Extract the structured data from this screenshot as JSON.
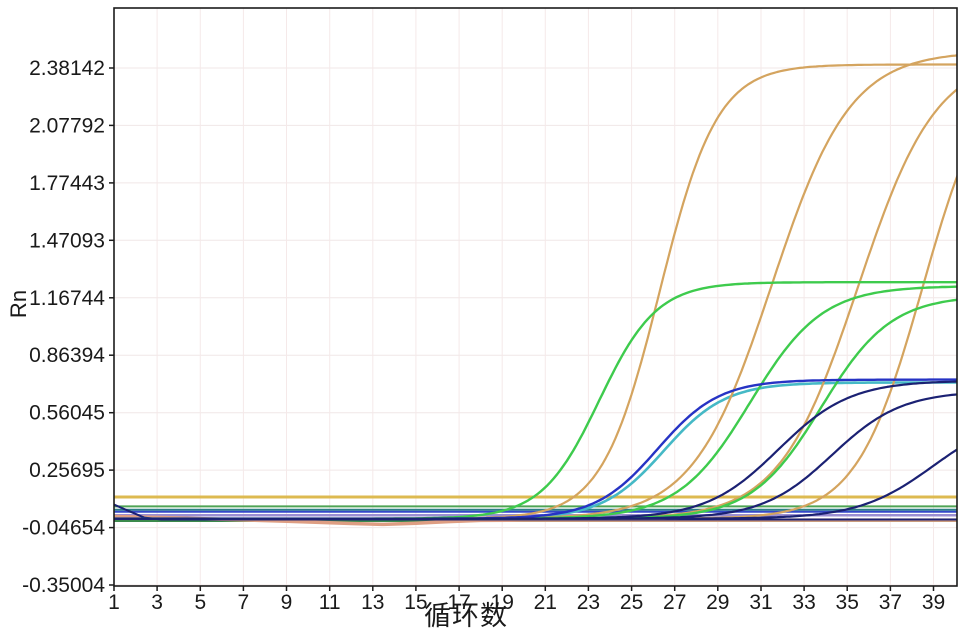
{
  "chart_data": {
    "type": "line",
    "title": "",
    "xlabel": "循环数",
    "ylabel": "Rn",
    "x_ticks": [
      "1",
      "3",
      "5",
      "7",
      "9",
      "11",
      "13",
      "15",
      "17",
      "19",
      "21",
      "23",
      "25",
      "27",
      "29",
      "31",
      "33",
      "35",
      "37",
      "39"
    ],
    "y_ticks": [
      "2.38142",
      "2.07792",
      "1.77443",
      "1.47093",
      "1.16744",
      "0.86394",
      "0.56045",
      "0.25695",
      "-0.04654",
      "-0.35004"
    ],
    "x_range": [
      1,
      40.1
    ],
    "y_range": [
      -0.35004,
      2.69842
    ],
    "grid": true,
    "legend": false,
    "background": "#ffffff",
    "frame_color": "#1b1b1b",
    "gridline_color_h": "#f0e7e7",
    "gridline_color_v": "#f5e9e9",
    "threshold_line": {
      "name": "threshold",
      "value": 0.115,
      "color": "#ddba50"
    },
    "series": [
      {
        "name": "flat-line-green",
        "color": "#4fa455",
        "kind": "line",
        "width": 2,
        "points": [
          [
            1,
            0.065
          ],
          [
            40.2,
            0.065
          ]
        ]
      },
      {
        "name": "flat-line-teal",
        "color": "#2c7f86",
        "kind": "line",
        "width": 2,
        "points": [
          [
            1,
            0.048
          ],
          [
            40.2,
            0.048
          ]
        ]
      },
      {
        "name": "flat-line-blue",
        "color": "#3448c8",
        "kind": "line",
        "width": 2,
        "points": [
          [
            1,
            0.037
          ],
          [
            40.2,
            0.037
          ]
        ]
      },
      {
        "name": "flat-line-purple",
        "color": "#9b8ed2",
        "kind": "line",
        "width": 2.5,
        "points": [
          [
            1,
            0.018
          ],
          [
            40.2,
            0.018
          ]
        ]
      },
      {
        "name": "flat-line-dark-green",
        "color": "#3c8a4c",
        "kind": "line",
        "width": 2,
        "points": [
          [
            1,
            -0.012
          ],
          [
            40.2,
            -0.012
          ]
        ]
      },
      {
        "name": "baseline-drift-salmon",
        "color": "#de9e83",
        "kind": "line",
        "width": 3.5,
        "points": [
          [
            1,
            0.012
          ],
          [
            3,
            0.007
          ],
          [
            6,
            -0.003
          ],
          [
            9,
            -0.013
          ],
          [
            12,
            -0.025
          ],
          [
            13.5,
            -0.03
          ],
          [
            15,
            -0.024
          ],
          [
            16.5,
            -0.015
          ],
          [
            18,
            -0.009
          ],
          [
            20,
            -0.007
          ],
          [
            40.2,
            -0.007
          ]
        ]
      },
      {
        "name": "navy-initial-dip",
        "color": "#1b2173",
        "kind": "line",
        "width": 2,
        "points": [
          [
            1,
            0.075
          ],
          [
            1.6,
            0.045
          ],
          [
            2.4,
            0.006
          ],
          [
            3.2,
            -0.004
          ],
          [
            40.2,
            -0.004
          ]
        ]
      },
      {
        "name": "teal-under-blue-1",
        "color": "#45b9c6",
        "kind": "sigmoid",
        "width": 2.6,
        "L": 0.72,
        "x0": 26.5,
        "k": 0.7
      },
      {
        "name": "orange-1",
        "color": "#d4a45f",
        "kind": "sigmoid",
        "width": 2.2,
        "L": 2.4,
        "x0": 26.3,
        "k": 0.75
      },
      {
        "name": "orange-2",
        "color": "#d4a45f",
        "kind": "sigmoid",
        "width": 2.2,
        "L": 2.47,
        "x0": 31.5,
        "k": 0.55
      },
      {
        "name": "orange-3",
        "color": "#d4a45f",
        "kind": "sigmoid",
        "width": 2.2,
        "L": 2.45,
        "x0": 35.5,
        "k": 0.55
      },
      {
        "name": "orange-4",
        "color": "#d4a45f",
        "kind": "sigmoid",
        "width": 2.2,
        "L": 2.45,
        "x0": 38.5,
        "k": 0.65
      },
      {
        "name": "green-1",
        "color": "#3ecb4d",
        "kind": "sigmoid",
        "width": 2.4,
        "L": 1.25,
        "x0": 23.5,
        "k": 0.75
      },
      {
        "name": "green-2",
        "color": "#3ecb4d",
        "kind": "sigmoid",
        "width": 2.4,
        "L": 1.23,
        "x0": 30.5,
        "k": 0.6
      },
      {
        "name": "green-3",
        "color": "#3ecb4d",
        "kind": "sigmoid",
        "width": 2.4,
        "L": 1.18,
        "x0": 33.8,
        "k": 0.62
      },
      {
        "name": "blue-1",
        "color": "#2633c4",
        "kind": "sigmoid",
        "width": 2.4,
        "L": 0.735,
        "x0": 26.2,
        "k": 0.7
      },
      {
        "name": "blue-2",
        "color": "#1b2173",
        "kind": "sigmoid",
        "width": 2.2,
        "L": 0.73,
        "x0": 31.8,
        "k": 0.6
      },
      {
        "name": "blue-3",
        "color": "#1b2173",
        "kind": "sigmoid",
        "width": 2.2,
        "L": 0.675,
        "x0": 34.3,
        "k": 0.62
      },
      {
        "name": "blue-4",
        "color": "#1b2173",
        "kind": "sigmoid",
        "width": 2.2,
        "L": 0.56,
        "x0": 39.0,
        "k": 0.58
      }
    ]
  }
}
